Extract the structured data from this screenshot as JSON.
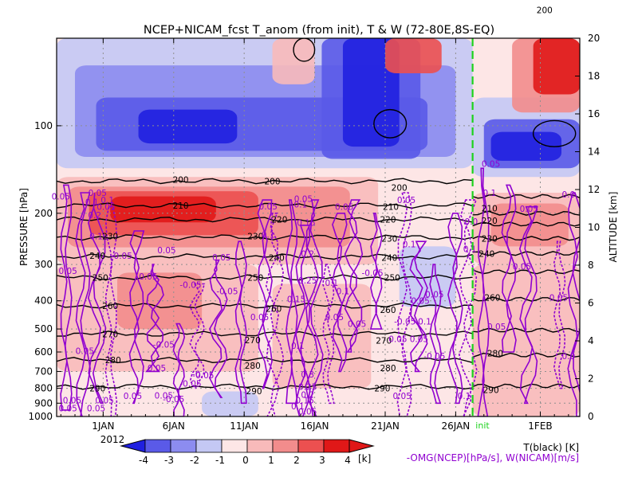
{
  "chart_data": {
    "type": "heatmap",
    "title": "NCEP+NICAM_fcst T_anom (from init), T & W  (72-80E,8S-EQ)",
    "y_left_label": "PRESSURE [hPa]",
    "y_right_label": "ALTITUDE [km]",
    "x_ticks": [
      "1JAN",
      "6JAN",
      "11JAN",
      "16JAN",
      "21JAN",
      "26JAN",
      "1FEB"
    ],
    "x_tick_days": [
      1,
      6,
      11,
      16,
      21,
      26,
      32
    ],
    "x_range_days": [
      -2.3,
      34.8
    ],
    "year_label": "2012",
    "init_label": "init",
    "init_day": 27.2,
    "y_left_ticks": [
      "100",
      "200",
      "300",
      "400",
      "500",
      "600",
      "700",
      "800",
      "900",
      "1000"
    ],
    "y_left_tick_values": [
      100,
      200,
      300,
      400,
      500,
      600,
      700,
      800,
      900,
      1000
    ],
    "y_right_ticks": [
      "0",
      "2",
      "4",
      "6",
      "8",
      "10",
      "12",
      "14",
      "16",
      "18",
      "20"
    ],
    "y_right_tick_values": [
      0,
      2,
      4,
      6,
      8,
      10,
      12,
      14,
      16,
      18,
      20
    ],
    "colorbar": {
      "labels": [
        "-4",
        "-3",
        "-2",
        "-1",
        "0",
        "1",
        "2",
        "3",
        "4"
      ],
      "levels": [
        -4,
        -3,
        -2,
        -1,
        0,
        1,
        2,
        3,
        4
      ],
      "colors": [
        "#2020e0",
        "#5a5ae8",
        "#8c8cf0",
        "#c4c8f4",
        "#fde6e6",
        "#f8baba",
        "#f28c8c",
        "#ec5050",
        "#e01818"
      ],
      "unit": "[k]"
    },
    "legend_t": "T(black) [K]",
    "legend_w": "-OMG(NCEP)[hPa/s], W(NICAM)[m/s]",
    "w_color": "#9000d0",
    "t_contours": [
      {
        "label": "200",
        "p_left": 155,
        "p_right": 175
      },
      {
        "label": "210",
        "p_left": 188,
        "p_right": 200
      },
      {
        "label": "220",
        "p_left": 210,
        "p_right": 218
      },
      {
        "label": "230",
        "p_left": 242,
        "p_right": 244
      },
      {
        "label": "240",
        "p_left": 282,
        "p_right": 275
      },
      {
        "label": "250",
        "p_left": 333,
        "p_right": 318
      },
      {
        "label": "260",
        "p_left": 416,
        "p_right": 395
      },
      {
        "label": "270",
        "p_left": 520,
        "p_right": 505
      },
      {
        "label": "280",
        "p_left": 640,
        "p_right": 615
      },
      {
        "label": "290",
        "p_left": 790,
        "p_right": 785
      }
    ],
    "t_labels": [
      {
        "text": "200",
        "day": 6.5,
        "p": 153
      },
      {
        "text": "200",
        "day": 13,
        "p": 155
      },
      {
        "text": "200",
        "day": 22,
        "p": 163
      },
      {
        "text": "200",
        "day": 32.3,
        "p": 40
      },
      {
        "text": "210",
        "day": 6.5,
        "p": 188
      },
      {
        "text": "210",
        "day": 21.4,
        "p": 190
      },
      {
        "text": "210",
        "day": 28.4,
        "p": 192
      },
      {
        "text": "220",
        "day": 13.5,
        "p": 210
      },
      {
        "text": "220",
        "day": 21.2,
        "p": 210
      },
      {
        "text": "220",
        "day": 28.4,
        "p": 212
      },
      {
        "text": "230",
        "day": 1.5,
        "p": 240
      },
      {
        "text": "230",
        "day": 11.8,
        "p": 240
      },
      {
        "text": "230",
        "day": 21.3,
        "p": 244
      },
      {
        "text": "230",
        "day": 28.4,
        "p": 244
      },
      {
        "text": "240",
        "day": 0.6,
        "p": 280
      },
      {
        "text": "240",
        "day": 13.3,
        "p": 284
      },
      {
        "text": "240",
        "day": 21.3,
        "p": 284
      },
      {
        "text": "240",
        "day": 28.2,
        "p": 275
      },
      {
        "text": "250",
        "day": 0.8,
        "p": 333
      },
      {
        "text": "250",
        "day": 11.8,
        "p": 333
      },
      {
        "text": "250",
        "day": 21.5,
        "p": 333
      },
      {
        "text": "260",
        "day": 1.5,
        "p": 416
      },
      {
        "text": "260",
        "day": 13.1,
        "p": 425
      },
      {
        "text": "260",
        "day": 21.2,
        "p": 430
      },
      {
        "text": "260",
        "day": 28.6,
        "p": 390
      },
      {
        "text": "270",
        "day": 1.5,
        "p": 520
      },
      {
        "text": "270",
        "day": 11.6,
        "p": 545
      },
      {
        "text": "270",
        "day": 20.9,
        "p": 548
      },
      {
        "text": "280",
        "day": 1.7,
        "p": 640
      },
      {
        "text": "280",
        "day": 11.6,
        "p": 668
      },
      {
        "text": "280",
        "day": 21.2,
        "p": 680
      },
      {
        "text": "280",
        "day": 28.8,
        "p": 605
      },
      {
        "text": "290",
        "day": 0.6,
        "p": 800
      },
      {
        "text": "290",
        "day": 11.7,
        "p": 818
      },
      {
        "text": "290",
        "day": 20.8,
        "p": 800
      },
      {
        "text": "290",
        "day": 28.5,
        "p": 810
      }
    ],
    "w_labels": [
      {
        "text": "0.05",
        "day": 0.6,
        "p": 170
      },
      {
        "text": "0.1",
        "day": 1.3,
        "p": 180
      },
      {
        "text": "0.05",
        "day": -2.0,
        "p": 175
      },
      {
        "text": "0.1",
        "day": 0.2,
        "p": 183
      },
      {
        "text": "0.05",
        "day": 1.2,
        "p": 190
      },
      {
        "text": "0.2",
        "day": 0.4,
        "p": 203
      },
      {
        "text": "0.1",
        "day": 0.5,
        "p": 240
      },
      {
        "text": "-0.05",
        "day": 2.3,
        "p": 280
      },
      {
        "text": "0.05",
        "day": -1.5,
        "p": 315
      },
      {
        "text": "0.05",
        "day": 5.5,
        "p": 268
      },
      {
        "text": "0.05",
        "day": 4.2,
        "p": 330
      },
      {
        "text": "-0.05",
        "day": 7.2,
        "p": 352
      },
      {
        "text": "-0.05",
        "day": 9.8,
        "p": 370
      },
      {
        "text": "0.05",
        "day": 9.4,
        "p": 283
      },
      {
        "text": "0.05",
        "day": 12.1,
        "p": 455
      },
      {
        "text": "0.05",
        "day": 12.7,
        "p": 189
      },
      {
        "text": "0.1",
        "day": 12.7,
        "p": 237
      },
      {
        "text": "0.1",
        "day": 15.0,
        "p": 186
      },
      {
        "text": "0.05",
        "day": 15.2,
        "p": 178
      },
      {
        "text": "0.15",
        "day": 15.4,
        "p": 215
      },
      {
        "text": "0.05",
        "day": 18.1,
        "p": 190
      },
      {
        "text": "0.2",
        "day": 15.5,
        "p": 275
      },
      {
        "text": "0.25",
        "day": 15.5,
        "p": 340
      },
      {
        "text": "0.15",
        "day": 14.7,
        "p": 395
      },
      {
        "text": "0.1",
        "day": 17.2,
        "p": 347
      },
      {
        "text": "0.1",
        "day": 18.0,
        "p": 370
      },
      {
        "text": "0.05",
        "day": 17.4,
        "p": 455
      },
      {
        "text": "0.05",
        "day": 19.0,
        "p": 480
      },
      {
        "text": "0.1",
        "day": 14.8,
        "p": 570
      },
      {
        "text": "0.3",
        "day": 15.5,
        "p": 715
      },
      {
        "text": "0.25",
        "day": 15.5,
        "p": 790
      },
      {
        "text": "0.2",
        "day": 15.5,
        "p": 840
      },
      {
        "text": "0.15",
        "day": 15.3,
        "p": 880
      },
      {
        "text": "0.1",
        "day": 14.8,
        "p": 920
      },
      {
        "text": "0.05",
        "day": 15.5,
        "p": 960
      },
      {
        "text": "-0.05",
        "day": 20.1,
        "p": 320
      },
      {
        "text": "0.05",
        "day": 22.5,
        "p": 180
      },
      {
        "text": "0.1",
        "day": 22.7,
        "p": 255
      },
      {
        "text": "0.05",
        "day": 23.5,
        "p": 400
      },
      {
        "text": "0.1",
        "day": 23.8,
        "p": 470
      },
      {
        "text": "-0.05",
        "day": 22.4,
        "p": 470
      },
      {
        "text": "0.05",
        "day": 21.9,
        "p": 540
      },
      {
        "text": "0.05",
        "day": 23.4,
        "p": 540
      },
      {
        "text": "-0.05",
        "day": 24.5,
        "p": 620
      },
      {
        "text": "0.05",
        "day": 22.2,
        "p": 850
      },
      {
        "text": "0.05",
        "day": 24.5,
        "p": 380
      },
      {
        "text": "0.1",
        "day": 27.0,
        "p": 265
      },
      {
        "text": "0.1",
        "day": 26.6,
        "p": 850
      },
      {
        "text": "0.0",
        "day": 27.1,
        "p": 213
      },
      {
        "text": "0.05",
        "day": 28.5,
        "p": 135
      },
      {
        "text": "0.1",
        "day": 28.4,
        "p": 170
      },
      {
        "text": "0.05",
        "day": 31.2,
        "p": 193
      },
      {
        "text": "0.0",
        "day": 34.0,
        "p": 172
      },
      {
        "text": "0.05",
        "day": 30.7,
        "p": 305
      },
      {
        "text": "0.05",
        "day": 28.9,
        "p": 490
      },
      {
        "text": "0.05",
        "day": 33.3,
        "p": 390
      },
      {
        "text": "0.0",
        "day": 34.0,
        "p": 620
      },
      {
        "text": "-0.05",
        "day": 5.3,
        "p": 565
      },
      {
        "text": "0.05",
        "day": 4.8,
        "p": 680
      },
      {
        "text": "-0.05",
        "day": 7.2,
        "p": 770
      },
      {
        "text": "0.05",
        "day": 5.3,
        "p": 845
      },
      {
        "text": "0.05",
        "day": 3.1,
        "p": 850
      },
      {
        "text": "-0.05",
        "day": 6.0,
        "p": 870
      },
      {
        "text": "-0.05",
        "day": 8.1,
        "p": 720
      },
      {
        "text": "-0.",
        "day": 7.7,
        "p": 713
      },
      {
        "text": "0.05",
        "day": -1.2,
        "p": 880
      },
      {
        "text": "0.05",
        "day": 1.1,
        "p": 880
      },
      {
        "text": "0.05",
        "day": 0.5,
        "p": 935
      },
      {
        "text": "0.05",
        "day": -0.3,
        "p": 595
      },
      {
        "text": "0.05",
        "day": -1.5,
        "p": 935
      }
    ]
  }
}
